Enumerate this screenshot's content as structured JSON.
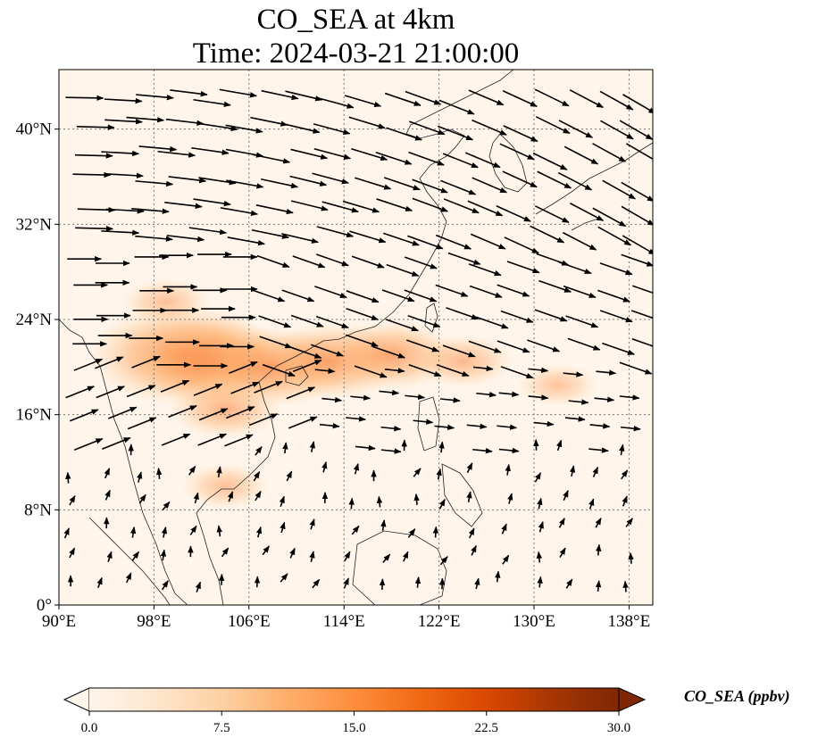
{
  "title": {
    "line1": "CO_SEA at 4km",
    "line2": "Time: 2024-03-21 21:00:00"
  },
  "map": {
    "lon_range": [
      90,
      140
    ],
    "lat_range": [
      0,
      45
    ],
    "lat_ticks": [
      {
        "value": 0,
        "label": "0°"
      },
      {
        "value": 8,
        "label": "8°N"
      },
      {
        "value": 16,
        "label": "16°N"
      },
      {
        "value": 24,
        "label": "24°N"
      },
      {
        "value": 32,
        "label": "32°N"
      },
      {
        "value": 40,
        "label": "40°N"
      }
    ],
    "lon_ticks": [
      {
        "value": 90,
        "label": "90°E"
      },
      {
        "value": 98,
        "label": "98°E"
      },
      {
        "value": 106,
        "label": "106°E"
      },
      {
        "value": 114,
        "label": "114°E"
      },
      {
        "value": 122,
        "label": "122°E"
      },
      {
        "value": 130,
        "label": "130°E"
      },
      {
        "value": 138,
        "label": "138°E"
      }
    ],
    "gridlines": true,
    "field": "CO_SEA",
    "field_hotspots": [
      {
        "lon": 100.5,
        "lat": 21.0,
        "value": 22
      },
      {
        "lon": 103,
        "lat": 20.5,
        "value": 18
      },
      {
        "lon": 108,
        "lat": 20.0,
        "value": 16
      },
      {
        "lon": 113,
        "lat": 20.5,
        "value": 15
      },
      {
        "lon": 118,
        "lat": 21.0,
        "value": 13
      },
      {
        "lon": 104,
        "lat": 16.5,
        "value": 10
      },
      {
        "lon": 124,
        "lat": 20.5,
        "value": 8
      },
      {
        "lon": 104,
        "lat": 10.0,
        "value": 6
      },
      {
        "lon": 99,
        "lat": 25.5,
        "value": 6
      },
      {
        "lon": 132,
        "lat": 18.5,
        "value": 5
      }
    ]
  },
  "colorbar": {
    "label": "CO_SEA (ppbv)",
    "min": 0.0,
    "max": 30.0,
    "ticks": [
      "0.0",
      "7.5",
      "15.0",
      "22.5",
      "30.0"
    ],
    "colors": [
      "#fff5eb",
      "#fee6ce",
      "#fdd0a2",
      "#fdae6b",
      "#fd8d3c",
      "#f16913",
      "#d94801",
      "#a63603",
      "#7f2704"
    ],
    "extend": "both"
  }
}
